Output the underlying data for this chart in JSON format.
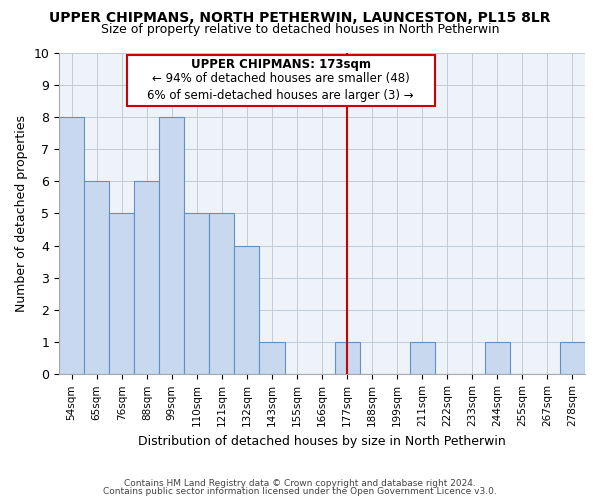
{
  "title": "UPPER CHIPMANS, NORTH PETHERWIN, LAUNCESTON, PL15 8LR",
  "subtitle": "Size of property relative to detached houses in North Petherwin",
  "xlabel": "Distribution of detached houses by size in North Petherwin",
  "ylabel": "Number of detached properties",
  "categories": [
    "54sqm",
    "65sqm",
    "76sqm",
    "88sqm",
    "99sqm",
    "110sqm",
    "121sqm",
    "132sqm",
    "143sqm",
    "155sqm",
    "166sqm",
    "177sqm",
    "188sqm",
    "199sqm",
    "211sqm",
    "222sqm",
    "233sqm",
    "244sqm",
    "255sqm",
    "267sqm",
    "278sqm"
  ],
  "values": [
    8,
    6,
    5,
    6,
    8,
    5,
    5,
    4,
    1,
    0,
    0,
    1,
    0,
    0,
    1,
    0,
    0,
    1,
    0,
    0,
    1
  ],
  "bar_color": "#c8d8ee",
  "bar_edge_color": "#6090c8",
  "reference_line_color": "#cc0000",
  "reference_line_x": 11.5,
  "annotation_title": "UPPER CHIPMANS: 173sqm",
  "annotation_line1": "← 94% of detached houses are smaller (48)",
  "annotation_line2": "6% of semi-detached houses are larger (3) →",
  "ylim": [
    0,
    10
  ],
  "footnote1": "Contains HM Land Registry data © Crown copyright and database right 2024.",
  "footnote2": "Contains public sector information licensed under the Open Government Licence v3.0.",
  "background_color": "#ffffff",
  "plot_bg_color": "#eef3fa",
  "grid_color": "#c0ccd8"
}
